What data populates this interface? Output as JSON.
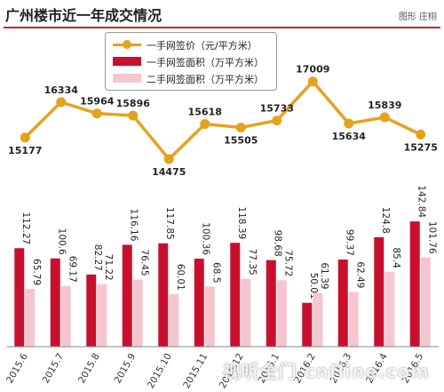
{
  "header": {
    "title": "广州楼市近一年成交情况",
    "credit": "图形 庄栩"
  },
  "watermark": "视听全门 cnfline.com",
  "colors": {
    "price_line": "#e5a21c",
    "new_area": "#c8102e",
    "resale_area": "#f6c6cf",
    "rule": "#c5262b"
  },
  "chart_data": [
    {
      "type": "line",
      "categories": [
        "2015.6",
        "2015.7",
        "2015.8",
        "2015.9",
        "2015.10",
        "2015.11",
        "2015.12",
        "2016.1",
        "2016.2",
        "2016.3",
        "2016.4",
        "2016.5"
      ],
      "series": [
        {
          "name": "一手网签价（元/平方米）",
          "values": [
            15177,
            16334,
            15964,
            15896,
            14475,
            15618,
            15505,
            15733,
            17009,
            15634,
            15839,
            15275
          ]
        }
      ],
      "ylim": [
        14300,
        17200
      ],
      "grid": false
    },
    {
      "type": "bar",
      "categories": [
        "2015.6",
        "2015.7",
        "2015.8",
        "2015.9",
        "2015.10",
        "2015.11",
        "2015.12",
        "2016.1",
        "2016.2",
        "2016.3",
        "2016.4",
        "2016.5"
      ],
      "series": [
        {
          "name": "一手网签面积（万平方米）",
          "values": [
            112.27,
            100.6,
            82.27,
            116.16,
            117.85,
            100.36,
            118.39,
            98.68,
            50.01,
            99.37,
            124.8,
            142.84
          ]
        },
        {
          "name": "二手网签面积（万平方米）",
          "values": [
            65.79,
            69.17,
            71.22,
            76.45,
            60.01,
            68.5,
            77.35,
            75.72,
            61.39,
            62.49,
            85.4,
            101.76
          ]
        }
      ],
      "ylim": [
        0,
        150
      ],
      "grid": false
    }
  ]
}
